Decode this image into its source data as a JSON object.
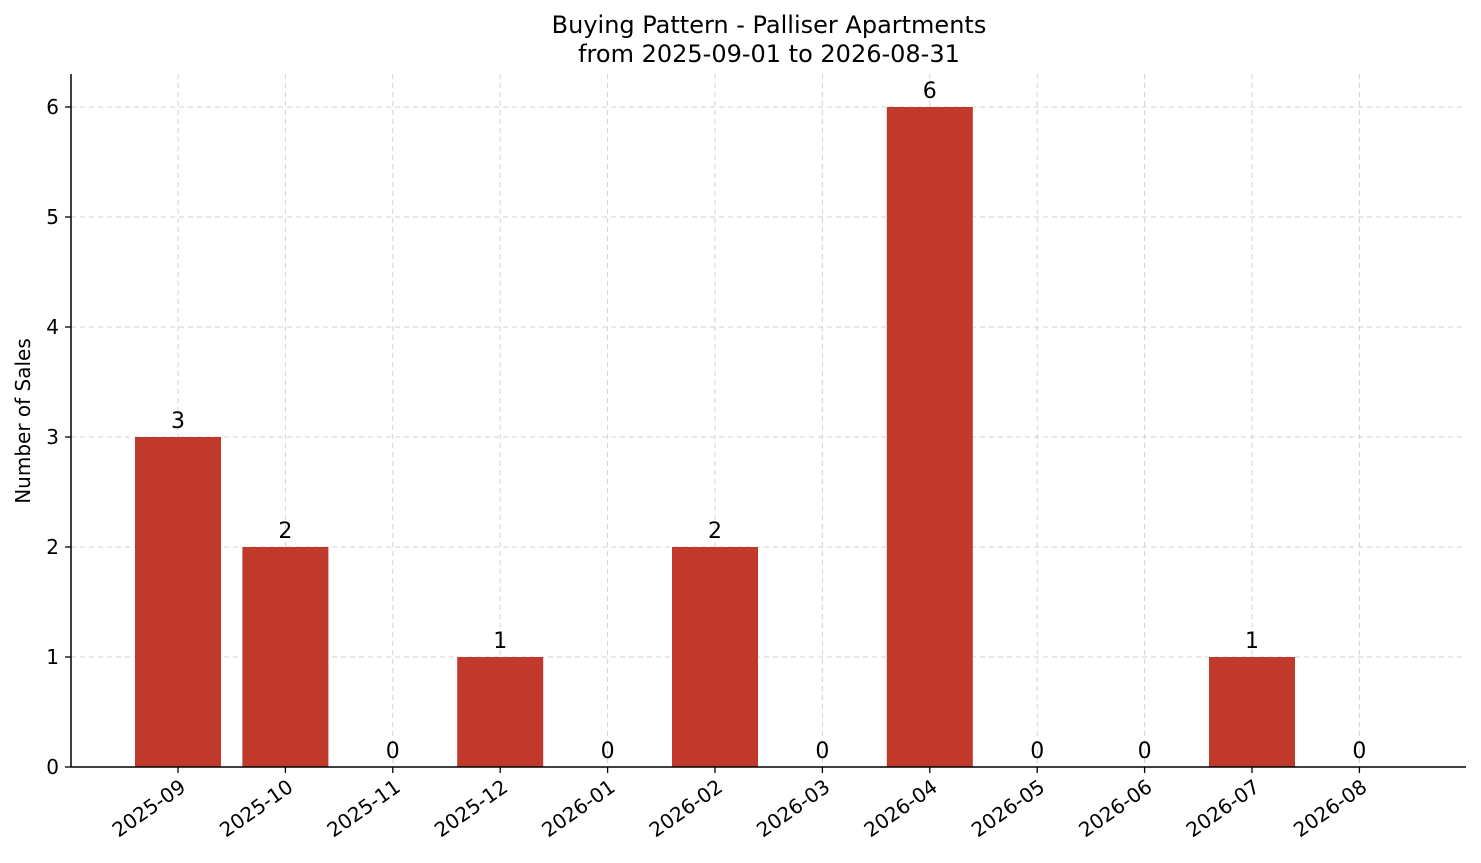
{
  "chart_data": {
    "type": "bar",
    "title_line1": "Buying Pattern - Palliser Apartments",
    "title_line2": "from 2025-09-01 to 2026-08-31",
    "xlabel": "",
    "ylabel": "Number of Sales",
    "categories": [
      "2025-09",
      "2025-10",
      "2025-11",
      "2025-12",
      "2026-01",
      "2026-02",
      "2026-03",
      "2026-04",
      "2026-05",
      "2026-06",
      "2026-07",
      "2026-08"
    ],
    "values": [
      3,
      2,
      0,
      1,
      0,
      2,
      0,
      6,
      0,
      0,
      1,
      0
    ],
    "ylim": [
      0,
      6.3
    ],
    "yticks": [
      0,
      1,
      2,
      3,
      4,
      5,
      6
    ],
    "grid": true,
    "bar_color": "#c0392b"
  }
}
